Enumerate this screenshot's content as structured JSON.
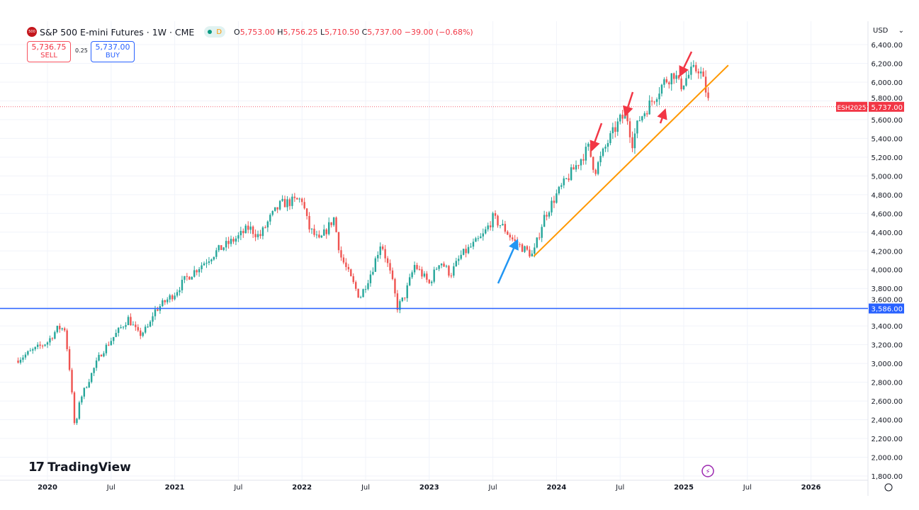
{
  "header": {
    "symbol_badge": "500",
    "title": "S&P 500 E-mini Futures · 1W · CME",
    "status_letter": "D",
    "open_label": "O",
    "open": "5,753.00",
    "high_label": "H",
    "high": "5,756.25",
    "low_label": "L",
    "low": "5,710.50",
    "close_label": "C",
    "close": "5,737.00",
    "change": "−39.00 (−0.68%)"
  },
  "trade": {
    "sell_price": "5,736.75",
    "sell_label": "SELL",
    "spread": "0.25",
    "buy_price": "5,737.00",
    "buy_label": "BUY"
  },
  "currency": "USD",
  "branding": "TradingView",
  "colors": {
    "up": "#26a69a",
    "down": "#ef5350",
    "support": "#2962ff",
    "trend": "#ff9800",
    "last_price": "#f23645"
  },
  "chart_data": {
    "type": "candlestick",
    "yticks": [
      1800,
      2000,
      2200,
      2400,
      2600,
      2800,
      3000,
      3200,
      3400,
      3600,
      3800,
      4000,
      4200,
      4400,
      4600,
      4800,
      5000,
      5200,
      5400,
      5600,
      5800,
      6000,
      6200,
      6400
    ],
    "ylim": [
      1800,
      6400
    ],
    "xticks": [
      "2020",
      "Jul",
      "2021",
      "Jul",
      "2022",
      "Jul",
      "2023",
      "Jul",
      "2024",
      "Jul",
      "2025",
      "Jul",
      "2026"
    ],
    "price_path": [
      [
        "2019-10",
        3030
      ],
      [
        "2020-01",
        3230
      ],
      [
        "2020-02",
        3380
      ],
      [
        "2020-02-20",
        3370
      ],
      [
        "2020-03-05",
        2900
      ],
      [
        "2020-03-20",
        2250
      ],
      [
        "2020-04-01",
        2600
      ],
      [
        "2020-05",
        2850
      ],
      [
        "2020-06",
        3100
      ],
      [
        "2020-07",
        3250
      ],
      [
        "2020-08-20",
        3480
      ],
      [
        "2020-09-20",
        3300
      ],
      [
        "2020-10-20",
        3400
      ],
      [
        "2020-11",
        3550
      ],
      [
        "2021-01",
        3750
      ],
      [
        "2021-02",
        3900
      ],
      [
        "2021-04",
        4100
      ],
      [
        "2021-05",
        4200
      ],
      [
        "2021-07",
        4350
      ],
      [
        "2021-08",
        4450
      ],
      [
        "2021-09",
        4350
      ],
      [
        "2021-10",
        4550
      ],
      [
        "2021-11",
        4700
      ],
      [
        "2022-01",
        4750
      ],
      [
        "2022-01-20",
        4450
      ],
      [
        "2022-02-20",
        4300
      ],
      [
        "2022-04",
        4550
      ],
      [
        "2022-04-20",
        4150
      ],
      [
        "2022-05-20",
        3900
      ],
      [
        "2022-06-15",
        3700
      ],
      [
        "2022-07-20",
        4000
      ],
      [
        "2022-08-15",
        4300
      ],
      [
        "2022-09-15",
        3900
      ],
      [
        "2022-10",
        3600
      ],
      [
        "2022-10-20",
        3700
      ],
      [
        "2022-11-20",
        4050
      ],
      [
        "2023-01",
        3850
      ],
      [
        "2023-02",
        4100
      ],
      [
        "2023-03",
        3950
      ],
      [
        "2023-04",
        4150
      ],
      [
        "2023-06",
        4350
      ],
      [
        "2023-07",
        4550
      ],
      [
        "2023-08",
        4450
      ],
      [
        "2023-09",
        4300
      ],
      [
        "2023-10-25",
        4150
      ],
      [
        "2023-11-25",
        4550
      ],
      [
        "2024-01",
        4800
      ],
      [
        "2024-02-25",
        5100
      ],
      [
        "2024-04",
        5300
      ],
      [
        "2024-04-20",
        5050
      ],
      [
        "2024-05-25",
        5350
      ],
      [
        "2024-07",
        5600
      ],
      [
        "2024-07-20",
        5650
      ],
      [
        "2024-08-05",
        5350
      ],
      [
        "2024-08-25",
        5600
      ],
      [
        "2024-10",
        5800
      ],
      [
        "2024-11-05",
        6000
      ],
      [
        "2024-12-05",
        6100
      ],
      [
        "2024-12-20",
        5950
      ],
      [
        "2025-01-20",
        6100
      ],
      [
        "2025-02-15",
        6150
      ],
      [
        "2025-03-01",
        5950
      ],
      [
        "2025-03-14",
        5737
      ]
    ],
    "last_price": {
      "symbol": "ESH2025",
      "value": "5,737.00",
      "price": 5737
    },
    "horizontal_line": {
      "value": 3586,
      "label": "3,586.00"
    },
    "trend_line": [
      [
        "2023-10-27",
        4142
      ],
      [
        "2025-05-07",
        6180
      ]
    ]
  }
}
